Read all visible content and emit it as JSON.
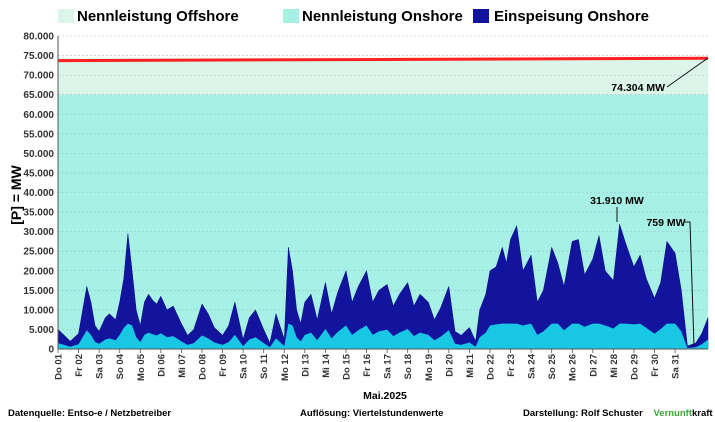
{
  "chart_data": {
    "type": "area",
    "title": "",
    "xlabel": "Mai.2025",
    "ylabel": "[P] = MW",
    "ylim": [
      0,
      80000
    ],
    "y_ticks": [
      "0",
      "5.000",
      "10.000",
      "15.000",
      "20.000",
      "25.000",
      "30.000",
      "35.000",
      "40.000",
      "45.000",
      "50.000",
      "55.000",
      "60.000",
      "65.000",
      "70.000",
      "75.000",
      "80.000"
    ],
    "x_labels": [
      "Do 01",
      "Fr 02",
      "Sa 03",
      "So 04",
      "Mo 05",
      "Di 06",
      "Mi 07",
      "Do 08",
      "Fr 09",
      "Sa 10",
      "So 11",
      "Mo 12",
      "Di 13",
      "Mi 14",
      "Do 15",
      "Fr 16",
      "Sa 17",
      "So 18",
      "Mo 19",
      "Di 20",
      "Mi 21",
      "Do 22",
      "Fr 23",
      "Sa 24",
      "So 25",
      "Mo 26",
      "Di 27",
      "Mi 28",
      "Do 29",
      "Fr 30",
      "Sa 31"
    ],
    "grid": true,
    "legend_placement": "top",
    "series": [
      {
        "name": "Nennleistung Offshore",
        "kind": "band",
        "color": "#dcf5ea",
        "from": 65000,
        "to": 74304
      },
      {
        "name": "Nennleistung Onshore",
        "kind": "band",
        "color": "#a6f0e6",
        "from": 0,
        "to": 65000
      },
      {
        "name": "Einspeisung Onshore",
        "kind": "area",
        "color": "#12149e",
        "x": [
          0,
          0.3,
          0.6,
          1.0,
          1.4,
          1.6,
          1.8,
          2.0,
          2.3,
          2.5,
          2.8,
          3.0,
          3.2,
          3.4,
          3.6,
          3.8,
          4.0,
          4.2,
          4.4,
          4.6,
          4.8,
          5.0,
          5.3,
          5.6,
          6.0,
          6.3,
          6.6,
          7.0,
          7.3,
          7.6,
          8.0,
          8.3,
          8.6,
          9.0,
          9.3,
          9.6,
          10.0,
          10.3,
          10.6,
          11.0,
          11.2,
          11.4,
          11.6,
          11.8,
          12.0,
          12.3,
          12.6,
          13.0,
          13.3,
          13.6,
          14.0,
          14.3,
          14.6,
          15.0,
          15.3,
          15.6,
          16.0,
          16.3,
          16.6,
          17.0,
          17.3,
          17.6,
          18.0,
          18.3,
          18.6,
          19.0,
          19.3,
          19.6,
          20.0,
          20.3,
          20.5,
          20.8,
          21.0,
          21.3,
          21.6,
          21.8,
          22.0,
          22.3,
          22.6,
          23.0,
          23.3,
          23.6,
          24.0,
          24.3,
          24.6,
          25.0,
          25.3,
          25.6,
          26.0,
          26.3,
          26.6,
          27.0,
          27.3,
          27.6,
          28.0,
          28.3,
          28.6,
          29.0,
          29.3,
          29.6,
          30.0,
          30.3,
          30.6,
          31.0,
          31.3,
          31.6
        ],
        "values": [
          5000,
          3500,
          2000,
          4000,
          16000,
          12000,
          6000,
          4500,
          8000,
          9000,
          7500,
          12000,
          18000,
          29500,
          20000,
          10000,
          6000,
          12000,
          14000,
          12500,
          11500,
          13500,
          10000,
          11000,
          6500,
          3500,
          5000,
          11500,
          9000,
          5500,
          3500,
          6000,
          12000,
          2500,
          8000,
          10000,
          5000,
          1500,
          9000,
          2500,
          26000,
          20000,
          10000,
          6500,
          12000,
          14000,
          7500,
          17000,
          9000,
          14500,
          20000,
          12000,
          16000,
          20000,
          12000,
          15000,
          16500,
          11000,
          14000,
          17000,
          11000,
          14000,
          12000,
          7500,
          10500,
          16000,
          4500,
          3500,
          5500,
          2000,
          10000,
          14000,
          20000,
          21000,
          26000,
          22000,
          28000,
          31500,
          20000,
          24000,
          12000,
          15000,
          26000,
          22000,
          16000,
          27500,
          28000,
          19000,
          23000,
          29000,
          20000,
          17500,
          31910,
          27000,
          21000,
          24000,
          18000,
          13000,
          17000,
          27500,
          24500,
          15000,
          759,
          1500,
          4000,
          8000
        ]
      },
      {
        "name": "Nennleistung gesamt",
        "kind": "line",
        "color": "#ff2020",
        "x": [
          0,
          31.6
        ],
        "values": [
          73700,
          74304
        ]
      }
    ],
    "annotations": [
      "74.304 MW",
      "31.910 MW",
      "759 MW"
    ],
    "x_axis_title": "Mai.2025"
  },
  "legend": [
    {
      "label": "Nennleistung Offshore",
      "color": "#dcf5ea"
    },
    {
      "label": "Nennleistung Onshore",
      "color": "#a6f0e6"
    },
    {
      "label": "Einspeisung Onshore",
      "color": "#12149e"
    }
  ],
  "footer": {
    "left": "Datenquelle:  Entso-e  / Netzbetreiber",
    "center": "Auflösung: Viertelstundenwerte",
    "right_prefix": "Darstellung:  Rolf Schuster",
    "brand_green": "Vernunft",
    "brand_black": "kraft",
    "green_color": "#3aa53a"
  }
}
